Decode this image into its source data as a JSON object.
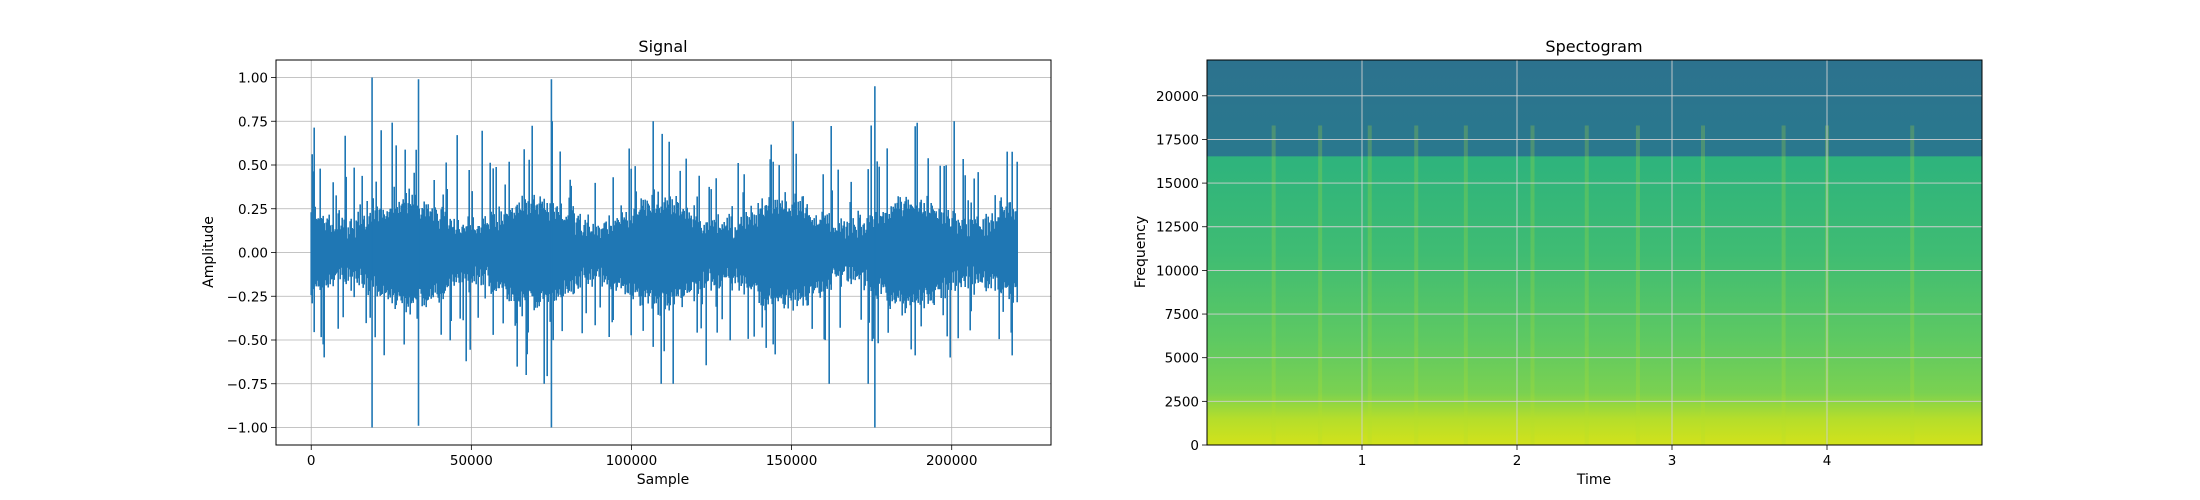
{
  "chart_data": [
    {
      "type": "line",
      "title": "Signal",
      "xlabel": "Sample",
      "ylabel": "Amplitude",
      "xlim": [
        -11000,
        231000
      ],
      "ylim": [
        -1.1,
        1.1
      ],
      "xticks": [
        0,
        50000,
        100000,
        150000,
        200000
      ],
      "xtick_labels": [
        "0",
        "50000",
        "100000",
        "150000",
        "200000"
      ],
      "yticks": [
        1.0,
        0.75,
        0.5,
        0.25,
        0.0,
        -0.25,
        -0.5,
        -0.75,
        -1.0
      ],
      "ytick_labels": [
        "1.00",
        "0.75",
        "0.50",
        "0.25",
        "0.00",
        "−0.25",
        "−0.50",
        "−0.75",
        "−1.00"
      ],
      "grid": true,
      "color": "#1f77b4",
      "sample_count": 220500,
      "peaks": [
        {
          "x": 19000,
          "y": 1.0
        },
        {
          "x": 19000,
          "y": -1.0
        },
        {
          "x": 33500,
          "y": 0.99
        },
        {
          "x": 33500,
          "y": -0.99
        },
        {
          "x": 75000,
          "y": 0.99
        },
        {
          "x": 75000,
          "y": -1.0
        },
        {
          "x": 176000,
          "y": 0.95
        },
        {
          "x": 176000,
          "y": -1.0
        }
      ]
    },
    {
      "type": "heatmap",
      "title": "Spectogram",
      "xlabel": "Time",
      "ylabel": "Frequency",
      "xlim": [
        0.0,
        5.0
      ],
      "ylim": [
        0,
        22050
      ],
      "xticks": [
        1,
        2,
        3,
        4
      ],
      "xtick_labels": [
        "1",
        "2",
        "3",
        "4"
      ],
      "yticks": [
        0,
        2500,
        5000,
        7500,
        10000,
        12500,
        15000,
        17500,
        20000
      ],
      "ytick_labels": [
        "0",
        "2500",
        "5000",
        "7500",
        "10000",
        "12500",
        "15000",
        "17500",
        "20000"
      ],
      "grid": true,
      "colormap": "viridis",
      "cutoff_frequency": 16500,
      "band_colors": [
        {
          "freq": 0,
          "color": "#d2e21b"
        },
        {
          "freq": 1500,
          "color": "#b5de2b"
        },
        {
          "freq": 3000,
          "color": "#7ad151"
        },
        {
          "freq": 6000,
          "color": "#5ec962"
        },
        {
          "freq": 11000,
          "color": "#3fbc73"
        },
        {
          "freq": 16000,
          "color": "#2fb47c"
        },
        {
          "freq": 17500,
          "color": "#2a788e"
        },
        {
          "freq": 22050,
          "color": "#2c728e"
        }
      ],
      "bright_times": [
        0.43,
        0.73,
        1.05,
        1.35,
        1.67,
        2.1,
        2.45,
        2.78,
        3.2,
        3.72,
        4.0,
        4.55
      ]
    }
  ]
}
